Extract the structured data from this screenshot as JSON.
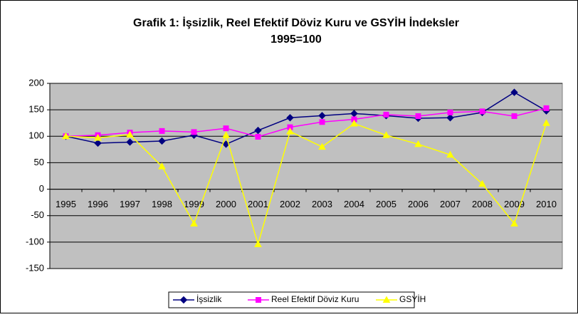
{
  "chart_data": {
    "type": "line",
    "title": "Grafik 1: İşsizlik, Reel Efektif Döviz Kuru ve GSYİH İndeksler",
    "subtitle": "1995=100",
    "categories": [
      "1995",
      "1996",
      "1997",
      "1998",
      "1999",
      "2000",
      "2001",
      "2002",
      "2003",
      "2004",
      "2005",
      "2006",
      "2007",
      "2008",
      "2009",
      "2010"
    ],
    "series": [
      {
        "name": "İşsizlik",
        "color": "#000080",
        "marker": "diamond",
        "values": [
          100,
          87,
          89,
          91,
          102,
          85,
          111,
          135,
          139,
          143,
          139,
          134,
          135,
          145,
          183,
          148
        ]
      },
      {
        "name": "Reel Efektif Döviz Kuru",
        "color": "#ff00ff",
        "marker": "square",
        "values": [
          100,
          102,
          107,
          110,
          108,
          115,
          99,
          117,
          127,
          132,
          141,
          138,
          145,
          147,
          138,
          153
        ]
      },
      {
        "name": "GSYİH",
        "color": "#ffff00",
        "marker": "triangle",
        "values": [
          100,
          97,
          103,
          43,
          -65,
          102,
          -104,
          109,
          80,
          124,
          102,
          85,
          65,
          10,
          -65,
          125
        ]
      }
    ],
    "ylim": [
      -150,
      200
    ],
    "yticks": [
      -150,
      -100,
      -50,
      0,
      50,
      100,
      150,
      200
    ],
    "grid": true,
    "plot_background": "#c0c0c0",
    "legend": "bottom"
  }
}
